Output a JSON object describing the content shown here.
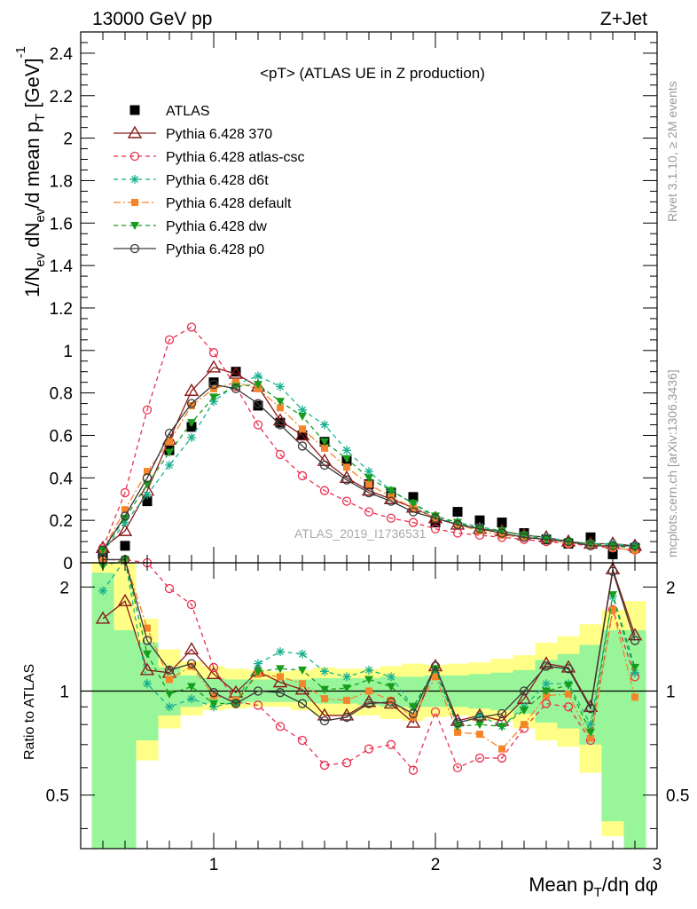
{
  "header": {
    "left": "13000 GeV pp",
    "right": "Z+Jet"
  },
  "side_labels": {
    "rivet": "Rivet 3.1.10, ≥ 2M events",
    "mcplots": "mcplots.cern.ch [arXiv:1306.3436]"
  },
  "watermark": "ATLAS_2019_I1736531",
  "chart_data": [
    {
      "type": "line",
      "title": "<pT> (ATLAS UE in Z production)",
      "xlabel": "Mean p_T/dη dφ",
      "ylabel": "1/N_ev dN_ev/d mean p_T [GeV]^-1",
      "xlim": [
        0.4,
        3.0
      ],
      "ylim": [
        0,
        2.5
      ],
      "x_ticks": [
        "1",
        "2",
        "3"
      ],
      "y_ticks": [
        "0",
        "0.2",
        "0.4",
        "0.6",
        "0.8",
        "1",
        "1.2",
        "1.4",
        "1.6",
        "1.8",
        "2",
        "2.2",
        "2.4"
      ],
      "legend_position": "top-left",
      "x": [
        0.5,
        0.6,
        0.7,
        0.8,
        0.9,
        1.0,
        1.1,
        1.2,
        1.3,
        1.4,
        1.5,
        1.6,
        1.7,
        1.8,
        1.9,
        2.0,
        2.1,
        2.2,
        2.3,
        2.4,
        2.5,
        2.6,
        2.7,
        2.8,
        2.9
      ],
      "series": [
        {
          "name": "ATLAS",
          "color": "#000000",
          "marker": "square",
          "values": [
            0.04,
            0.08,
            0.29,
            0.53,
            0.64,
            0.85,
            0.9,
            0.74,
            0.66,
            0.6,
            0.57,
            0.48,
            0.37,
            0.33,
            0.31,
            0.19,
            0.24,
            0.2,
            0.19,
            0.14,
            0.11,
            0.09,
            0.12,
            0.04,
            0.07
          ]
        },
        {
          "name": "Pythia 6.428 370",
          "color": "#8b1a1a",
          "marker": "triangle-open",
          "dash": "",
          "values": [
            0.07,
            0.15,
            0.34,
            0.58,
            0.81,
            0.92,
            0.89,
            0.83,
            0.67,
            0.6,
            0.48,
            0.4,
            0.34,
            0.3,
            0.26,
            0.21,
            0.18,
            0.16,
            0.15,
            0.13,
            0.12,
            0.1,
            0.09,
            0.09,
            0.08
          ]
        },
        {
          "name": "Pythia 6.428 atlas-csc",
          "color": "#e8314f",
          "marker": "circle-open",
          "dash": "5,4",
          "values": [
            0.07,
            0.33,
            0.72,
            1.05,
            1.11,
            0.99,
            0.83,
            0.65,
            0.51,
            0.41,
            0.34,
            0.29,
            0.24,
            0.21,
            0.19,
            0.16,
            0.14,
            0.13,
            0.12,
            0.11,
            0.1,
            0.09,
            0.08,
            0.07,
            0.06
          ]
        },
        {
          "name": "Pythia 6.428 d6t",
          "color": "#18b18e",
          "marker": "asterisk",
          "dash": "5,4",
          "values": [
            0.05,
            0.19,
            0.32,
            0.46,
            0.59,
            0.76,
            0.84,
            0.88,
            0.83,
            0.72,
            0.65,
            0.53,
            0.43,
            0.34,
            0.28,
            0.21,
            0.19,
            0.17,
            0.15,
            0.13,
            0.12,
            0.1,
            0.09,
            0.09,
            0.08
          ]
        },
        {
          "name": "Pythia 6.428 default",
          "color": "#f5852b",
          "marker": "square-filled",
          "dash": "8,3,2,3",
          "values": [
            0.06,
            0.25,
            0.43,
            0.57,
            0.74,
            0.82,
            0.85,
            0.82,
            0.73,
            0.63,
            0.54,
            0.45,
            0.37,
            0.31,
            0.26,
            0.21,
            0.18,
            0.15,
            0.13,
            0.12,
            0.11,
            0.09,
            0.09,
            0.07,
            0.06
          ]
        },
        {
          "name": "Pythia 6.428 dw",
          "color": "#179c1c",
          "marker": "triangle-down-filled",
          "dash": "5,4",
          "values": [
            0.06,
            0.21,
            0.37,
            0.52,
            0.66,
            0.78,
            0.83,
            0.84,
            0.76,
            0.69,
            0.57,
            0.49,
            0.4,
            0.34,
            0.28,
            0.22,
            0.19,
            0.16,
            0.15,
            0.13,
            0.11,
            0.1,
            0.09,
            0.08,
            0.07
          ]
        },
        {
          "name": "Pythia 6.428 p0",
          "color": "#3a3a3a",
          "marker": "circle-open",
          "dash": "",
          "values": [
            0.06,
            0.22,
            0.4,
            0.61,
            0.75,
            0.84,
            0.82,
            0.75,
            0.65,
            0.55,
            0.46,
            0.39,
            0.33,
            0.29,
            0.24,
            0.21,
            0.18,
            0.16,
            0.14,
            0.12,
            0.11,
            0.1,
            0.08,
            0.08,
            0.08
          ]
        }
      ]
    },
    {
      "type": "line",
      "xlabel": "",
      "ylabel": "Ratio to ATLAS",
      "xlim": [
        0.4,
        3.0
      ],
      "ylim": [
        0.35,
        2.35
      ],
      "y_ticks": [
        "0.5",
        "1",
        "2"
      ],
      "x_ticks": [
        "1",
        "2",
        "3"
      ],
      "bands": {
        "x_edges": [
          0.45,
          0.55,
          0.65,
          0.75,
          0.85,
          0.95,
          1.05,
          1.15,
          1.25,
          1.35,
          1.45,
          1.55,
          1.65,
          1.75,
          1.85,
          1.95,
          2.05,
          2.15,
          2.25,
          2.35,
          2.45,
          2.55,
          2.65,
          2.75,
          2.85,
          2.95
        ],
        "yellow_low": [
          0.35,
          0.35,
          0.63,
          0.78,
          0.85,
          0.88,
          0.89,
          0.9,
          0.9,
          0.88,
          0.85,
          0.85,
          0.85,
          0.83,
          0.82,
          0.84,
          0.85,
          0.82,
          0.82,
          0.78,
          0.72,
          0.69,
          0.58,
          0.38,
          0.35
        ],
        "yellow_high": [
          2.35,
          2.35,
          1.62,
          1.32,
          1.22,
          1.18,
          1.16,
          1.15,
          1.14,
          1.15,
          1.17,
          1.16,
          1.16,
          1.18,
          1.2,
          1.19,
          1.2,
          1.21,
          1.24,
          1.27,
          1.38,
          1.44,
          1.56,
          1.72,
          1.82
        ],
        "green_low": [
          0.35,
          0.35,
          0.72,
          0.85,
          0.9,
          0.92,
          0.92,
          0.93,
          0.93,
          0.93,
          0.92,
          0.92,
          0.91,
          0.9,
          0.9,
          0.9,
          0.9,
          0.89,
          0.88,
          0.86,
          0.81,
          0.78,
          0.7,
          0.42,
          0.35
        ],
        "green_high": [
          2.2,
          1.5,
          1.38,
          1.17,
          1.11,
          1.09,
          1.08,
          1.08,
          1.08,
          1.08,
          1.09,
          1.09,
          1.09,
          1.1,
          1.1,
          1.11,
          1.11,
          1.12,
          1.13,
          1.15,
          1.23,
          1.28,
          1.36,
          1.5,
          1.5
        ]
      },
      "x": [
        0.5,
        0.6,
        0.7,
        0.8,
        0.9,
        1.0,
        1.1,
        1.2,
        1.3,
        1.4,
        1.5,
        1.6,
        1.7,
        1.8,
        1.9,
        2.0,
        2.1,
        2.2,
        2.3,
        2.4,
        2.5,
        2.6,
        2.7,
        2.8,
        2.9
      ],
      "series": [
        {
          "name": "Pythia 6.428 370",
          "values": [
            1.62,
            1.82,
            1.15,
            1.13,
            1.32,
            1.12,
            0.99,
            1.14,
            1.06,
            1.01,
            0.85,
            0.85,
            0.93,
            0.92,
            0.81,
            1.18,
            0.82,
            0.85,
            0.82,
            0.95,
            1.2,
            1.17,
            0.9,
            2.25,
            1.45
          ]
        },
        {
          "name": "Pythia 6.428 atlas-csc",
          "values": [
            2.4,
            2.4,
            2.35,
            1.98,
            1.78,
            1.17,
            0.93,
            0.91,
            0.79,
            0.72,
            0.61,
            0.62,
            0.68,
            0.7,
            0.59,
            0.87,
            0.6,
            0.64,
            0.64,
            0.78,
            0.92,
            0.9,
            0.72,
            1.72,
            1.1
          ]
        },
        {
          "name": "Pythia 6.428 d6t",
          "values": [
            1.95,
            2.4,
            1.05,
            0.9,
            0.95,
            0.9,
            0.93,
            1.2,
            1.3,
            1.28,
            1.14,
            1.1,
            1.15,
            1.1,
            0.9,
            1.13,
            0.8,
            0.85,
            0.79,
            0.9,
            1.05,
            1.05,
            0.8,
            1.88,
            1.13
          ]
        },
        {
          "name": "Pythia 6.428 default",
          "values": [
            2.4,
            2.4,
            1.52,
            1.08,
            1.18,
            0.97,
            0.94,
            1.12,
            1.1,
            1.05,
            0.95,
            0.94,
            1.0,
            0.94,
            0.84,
            1.1,
            0.76,
            0.75,
            0.68,
            0.8,
            0.97,
            0.98,
            0.73,
            1.72,
            0.96
          ]
        },
        {
          "name": "Pythia 6.428 dw",
          "values": [
            2.3,
            2.4,
            1.28,
            0.98,
            1.03,
            0.92,
            0.92,
            1.14,
            1.16,
            1.15,
            1.01,
            1.02,
            1.08,
            1.03,
            0.9,
            1.16,
            0.79,
            0.8,
            0.79,
            0.88,
            1.0,
            1.04,
            0.76,
            1.9,
            1.17
          ]
        },
        {
          "name": "Pythia 6.428 p0",
          "values": [
            2.4,
            2.4,
            1.4,
            1.15,
            1.2,
            0.99,
            0.92,
            1.0,
            0.99,
            0.92,
            0.82,
            0.84,
            0.92,
            0.93,
            0.86,
            1.18,
            0.81,
            0.84,
            0.86,
            1.0,
            1.18,
            1.16,
            0.89,
            2.22,
            1.4
          ]
        }
      ]
    }
  ]
}
